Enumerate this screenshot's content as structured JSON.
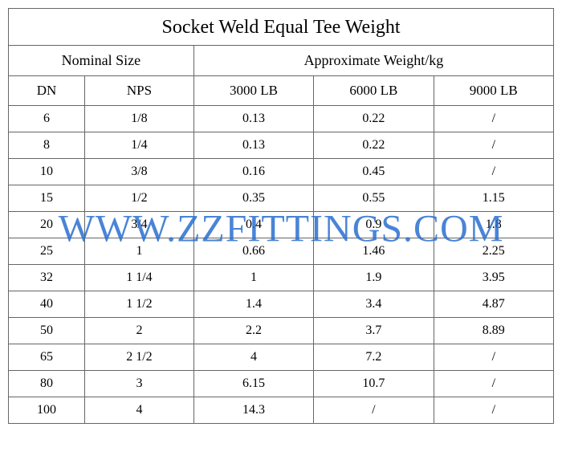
{
  "table": {
    "type": "table",
    "title": "Socket Weld Equal Tee Weight",
    "group_headers": [
      "Nominal Size",
      "Approximate Weight/kg"
    ],
    "group_spans": [
      2,
      3
    ],
    "columns": [
      "DN",
      "NPS",
      "3000 LB",
      "6000 LB",
      "9000 LB"
    ],
    "column_widths_pct": [
      14,
      20,
      22,
      22,
      22
    ],
    "rows": [
      [
        "6",
        "1/8",
        "0.13",
        "0.22",
        "/"
      ],
      [
        "8",
        "1/4",
        "0.13",
        "0.22",
        "/"
      ],
      [
        "10",
        "3/8",
        "0.16",
        "0.45",
        "/"
      ],
      [
        "15",
        "1/2",
        "0.35",
        "0.55",
        "1.15"
      ],
      [
        "20",
        "3/4",
        "0.4",
        "0.9",
        "1.8"
      ],
      [
        "25",
        "1",
        "0.66",
        "1.46",
        "2.25"
      ],
      [
        "32",
        "1 1/4",
        "1",
        "1.9",
        "3.95"
      ],
      [
        "40",
        "1 1/2",
        "1.4",
        "3.4",
        "4.87"
      ],
      [
        "50",
        "2",
        "2.2",
        "3.7",
        "8.89"
      ],
      [
        "65",
        "2 1/2",
        "4",
        "7.2",
        "/"
      ],
      [
        "80",
        "3",
        "6.15",
        "10.7",
        "/"
      ],
      [
        "100",
        "4",
        "14.3",
        "/",
        "/"
      ]
    ],
    "border_color": "#666666",
    "text_color": "#000000",
    "background_color": "#ffffff",
    "title_fontsize": 24,
    "group_fontsize": 18,
    "header_fontsize": 17,
    "cell_fontsize": 16
  },
  "watermark": {
    "text": "WWW.ZZFITTINGS.COM",
    "color": "#2a6fcf",
    "fontsize": 48,
    "opacity": 0.85
  }
}
